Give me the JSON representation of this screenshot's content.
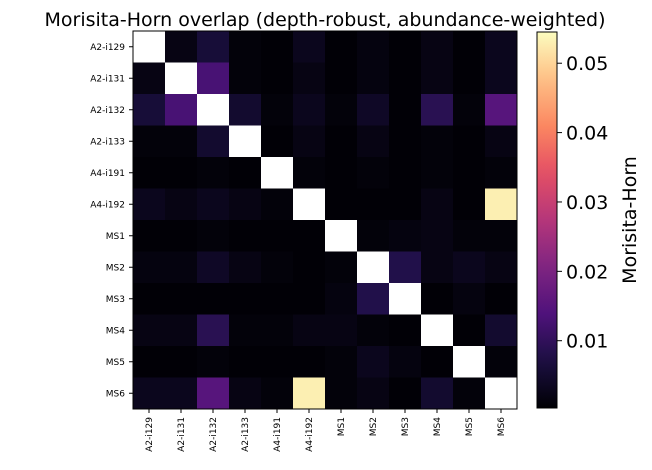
{
  "chart_data": {
    "type": "heatmap",
    "title": "Morisita-Horn overlap (depth-robust, abundance-weighted)",
    "row_labels": [
      "A2-i129",
      "A2-i131",
      "A2-i132",
      "A2-i133",
      "A4-i191",
      "A4-i192",
      "MS1",
      "MS2",
      "MS3",
      "MS4",
      "MS5",
      "MS6"
    ],
    "col_labels": [
      "A2-i129",
      "A2-i131",
      "A2-i132",
      "A2-i133",
      "A4-i191",
      "A4-i192",
      "MS1",
      "MS2",
      "MS3",
      "MS4",
      "MS5",
      "MS6"
    ],
    "values": [
      [
        null,
        0.002,
        0.006,
        0.001,
        0.0005,
        0.003,
        0.0005,
        0.0015,
        0.0005,
        0.002,
        0.0005,
        0.003
      ],
      [
        0.002,
        null,
        0.013,
        0.001,
        0.0005,
        0.002,
        0.0005,
        0.0015,
        0.0005,
        0.002,
        0.0005,
        0.003
      ],
      [
        0.006,
        0.013,
        null,
        0.005,
        0.001,
        0.003,
        0.001,
        0.004,
        0.0005,
        0.009,
        0.001,
        0.015
      ],
      [
        0.001,
        0.001,
        0.005,
        null,
        0.0005,
        0.002,
        0.0005,
        0.002,
        0.0005,
        0.001,
        0.0005,
        0.002
      ],
      [
        0.0005,
        0.0005,
        0.001,
        0.0005,
        null,
        0.001,
        0.0005,
        0.001,
        0.0005,
        0.001,
        0.0005,
        0.001
      ],
      [
        0.003,
        0.002,
        0.003,
        0.002,
        0.001,
        null,
        0.0005,
        0.0005,
        0.0005,
        0.002,
        0.0005,
        0.053
      ],
      [
        0.0005,
        0.0005,
        0.001,
        0.0005,
        0.0005,
        0.0005,
        null,
        0.001,
        0.0015,
        0.002,
        0.001,
        0.001
      ],
      [
        0.0015,
        0.0015,
        0.004,
        0.002,
        0.001,
        0.0005,
        0.001,
        null,
        0.008,
        0.002,
        0.003,
        0.002
      ],
      [
        0.0005,
        0.0005,
        0.0005,
        0.0005,
        0.0005,
        0.0005,
        0.0015,
        0.008,
        null,
        0.0005,
        0.0015,
        0.0005
      ],
      [
        0.002,
        0.002,
        0.009,
        0.001,
        0.001,
        0.002,
        0.002,
        0.001,
        0.0005,
        null,
        0.0005,
        0.005
      ],
      [
        0.0005,
        0.0005,
        0.001,
        0.0005,
        0.0005,
        0.0005,
        0.001,
        0.003,
        0.0015,
        0.0005,
        null,
        0.001
      ],
      [
        0.003,
        0.003,
        0.015,
        0.002,
        0.001,
        0.053,
        0.001,
        0.002,
        0.0005,
        0.005,
        0.001,
        null
      ]
    ],
    "diagonal_color": "#ffffff",
    "colormap": "magma",
    "colorbar": {
      "label": "Morisita-Horn",
      "min": 0.0003,
      "max": 0.0545,
      "ticks": [
        0.01,
        0.02,
        0.03,
        0.04,
        0.05
      ],
      "tick_labels": [
        "0.01",
        "0.02",
        "0.03",
        "0.04",
        "0.05"
      ]
    }
  }
}
